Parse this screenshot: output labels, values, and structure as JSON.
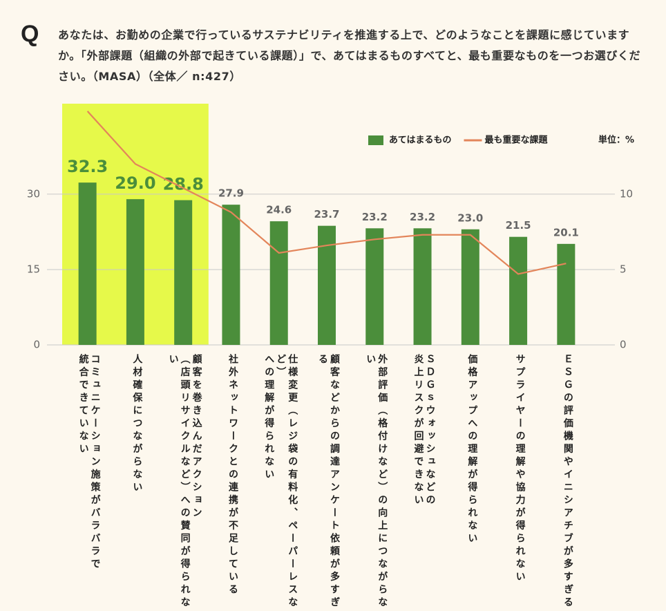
{
  "q_label": "Q",
  "chart_data": {
    "type": "bar",
    "title": "あなたは、お勤めの企業で行っているサステナビリティを推進する上で、どのようなことを課題に感じていますか。「外部課題（組織の外部で起きている課題）」で、あてはまるものすべてと、最も重要なものを一つお選びください。（MASA）（全体／ n:427）",
    "categories": [
      "コミュニケーション施策がバラバラで\n統合できていない",
      "人材確保につながらない",
      "顧客を巻き込んだアクション\n（店頭リサイクルなど）への賛同が得られない",
      "社外ネットワークとの連携が不足している",
      "仕様変更（レジ袋の有料化、ペーパーレスなど）\nへの理解が得られない",
      "顧客などからの調達アンケート依頼が多すぎる",
      "外部評価（格付けなど）の向上につながらない",
      "ＳＤＧｓウォッシュなどの\n炎上リスクが回避できない",
      "価格アップへの理解が得られない",
      "サプライヤーの理解や協力が得られない",
      "ＥＳＧの評価機関やイニシアチブが多すぎる"
    ],
    "series": [
      {
        "name": "あてはまるもの",
        "type": "bar",
        "color": "#4b8e3b",
        "values": [
          32.3,
          29.0,
          28.8,
          27.9,
          24.6,
          23.7,
          23.2,
          23.2,
          23.0,
          21.5,
          20.1
        ],
        "value_labels": [
          "32.3",
          "29.0",
          "28.8",
          "27.9",
          "24.6",
          "23.7",
          "23.2",
          "23.2",
          "23.0",
          "21.5",
          "20.1"
        ]
      },
      {
        "name": "最も重要な課題",
        "type": "line",
        "axis": "y2",
        "color": "#e3855a",
        "values": [
          15.5,
          12.0,
          10.4,
          8.8,
          6.1,
          6.6,
          7.0,
          7.3,
          7.3,
          4.7,
          5.4
        ]
      }
    ],
    "ylim": [
      0,
      48
    ],
    "yticks": [
      0,
      15,
      30
    ],
    "y2lim": [
      0,
      16
    ],
    "y2ticks": [
      0,
      5,
      10
    ],
    "unit_label": "単位：%",
    "legend": "top-right",
    "grid": true,
    "highlight": {
      "indices": [
        0,
        1,
        2
      ],
      "color": "#e6f94a"
    }
  }
}
